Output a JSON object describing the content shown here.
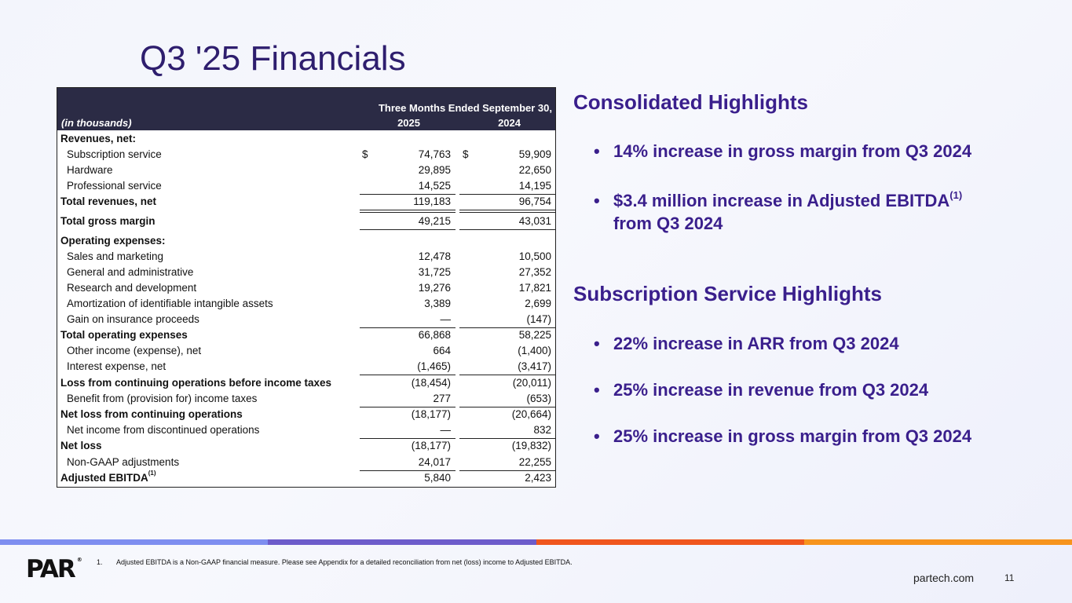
{
  "slide": {
    "title": "Q3 '25 Financials",
    "site": "partech.com",
    "page_number": "11",
    "logo_text": "PAR",
    "logo_reg": "®"
  },
  "table": {
    "period_header": "Three Months Ended September 30,",
    "unit_label": "(in thousands)",
    "year1": "2025",
    "year2": "2024",
    "currency_symbol": "$",
    "rows": [
      {
        "label": "Revenues, net:",
        "v1": "",
        "v2": ""
      },
      {
        "label": "Subscription service",
        "v1": "74,763",
        "v2": "59,909"
      },
      {
        "label": "Hardware",
        "v1": "29,895",
        "v2": "22,650"
      },
      {
        "label": "Professional service",
        "v1": "14,525",
        "v2": "14,195"
      },
      {
        "label": "Total revenues, net",
        "v1": "119,183",
        "v2": "96,754"
      },
      {
        "label": "Total gross margin",
        "v1": "49,215",
        "v2": "43,031"
      },
      {
        "label": "Operating expenses:",
        "v1": "",
        "v2": ""
      },
      {
        "label": "Sales and marketing",
        "v1": "12,478",
        "v2": "10,500"
      },
      {
        "label": "General and administrative",
        "v1": "31,725",
        "v2": "27,352"
      },
      {
        "label": "Research and development",
        "v1": "19,276",
        "v2": "17,821"
      },
      {
        "label": "Amortization of identifiable intangible assets",
        "v1": "3,389",
        "v2": "2,699"
      },
      {
        "label": "Gain on insurance proceeds",
        "v1": "—",
        "v2": "(147)"
      },
      {
        "label": "Total operating expenses",
        "v1": "66,868",
        "v2": "58,225"
      },
      {
        "label": "Other income (expense), net",
        "v1": "664",
        "v2": "(1,400)"
      },
      {
        "label": "Interest expense, net",
        "v1": "(1,465)",
        "v2": "(3,417)"
      },
      {
        "label": "Loss from continuing operations before income taxes",
        "v1": "(18,454)",
        "v2": "(20,011)"
      },
      {
        "label": "Benefit from (provision for) income taxes",
        "v1": "277",
        "v2": "(653)"
      },
      {
        "label": "Net loss from continuing operations",
        "v1": "(18,177)",
        "v2": "(20,664)"
      },
      {
        "label": "Net income from discontinued operations",
        "v1": "—",
        "v2": "832"
      },
      {
        "label": "Net loss",
        "v1": "(18,177)",
        "v2": "(19,832)"
      },
      {
        "label": "Non-GAAP adjustments",
        "v1": "24,017",
        "v2": "22,255"
      },
      {
        "label": "Adjusted EBITDA",
        "label_sup": "(1)",
        "v1": "5,840",
        "v2": "2,423"
      }
    ]
  },
  "highlights": {
    "consolidated_title": "Consolidated Highlights",
    "consolidated": [
      {
        "text": "14% increase in gross margin from Q3 2024"
      },
      {
        "text": "$3.4 million increase in Adjusted EBITDA",
        "sup": "(1)",
        "line2": "from Q3 2024"
      }
    ],
    "subscription_title": "Subscription Service Highlights",
    "subscription": [
      {
        "text": "22% increase in ARR from Q3 2024"
      },
      {
        "text": "25% increase in revenue from Q3 2024"
      },
      {
        "text": "25% increase in gross margin from Q3 2024"
      }
    ],
    "bullet_char": "•"
  },
  "footnote": {
    "number": "1.",
    "text": "Adjusted EBITDA is a Non-GAAP financial measure. Please see Appendix for a detailed reconciliation from net (loss) income to Adjusted EBITDA."
  }
}
